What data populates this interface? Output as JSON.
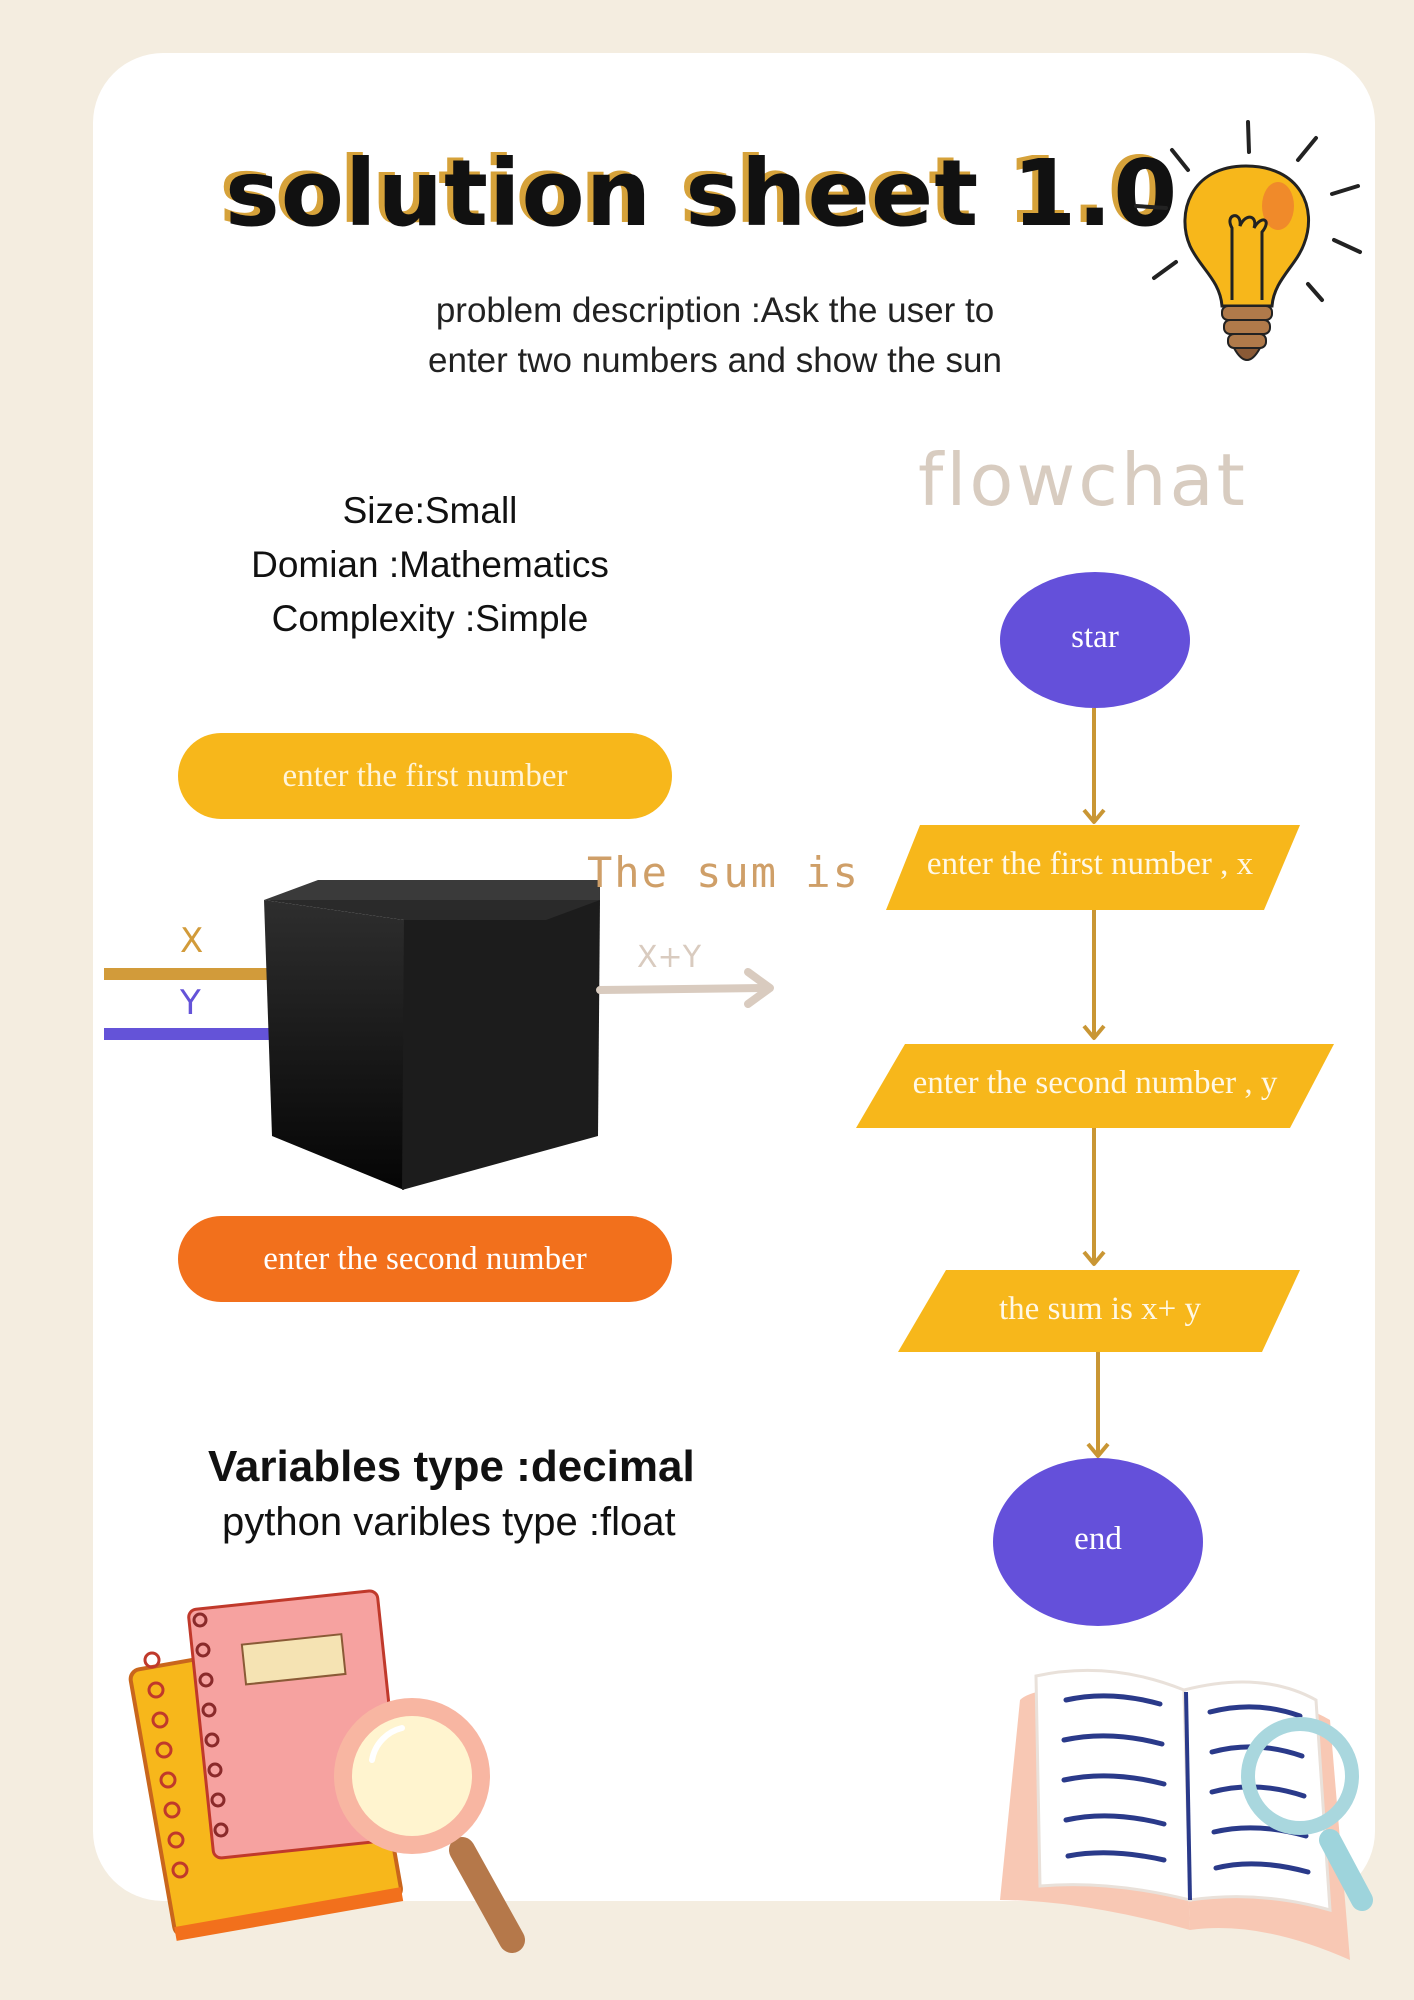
{
  "header": {
    "title": "solution sheet 1.0",
    "description_line1": "problem description :Ask the user to",
    "description_line2": "enter two numbers and show the sun"
  },
  "meta": {
    "size": "Size:Small",
    "domain": "Domian :Mathematics",
    "complexity": "Complexity :Simple"
  },
  "io_diagram": {
    "input_first": "enter the first number",
    "input_second": "enter the second number",
    "x_label": "X",
    "y_label": "Y",
    "output_label": "The sum is",
    "output_value": "X+Y"
  },
  "variables": {
    "type": "Variables type :decimal",
    "python_type": "python varibles type :float"
  },
  "flowchart": {
    "heading": "flowchat",
    "start": "star",
    "step1": "enter the first number , x",
    "step2": "enter the second number , y",
    "step3": "the sum is  x+ y",
    "end": "end"
  },
  "colors": {
    "background": "#f4ede0",
    "card": "#ffffff",
    "yellow": "#f7b71b",
    "orange": "#f2701c",
    "purple": "#6453d8",
    "gold_arrow": "#d29b3a",
    "beige_text": "#d8ccc0"
  },
  "decorations": [
    "lightbulb-icon",
    "notebooks-illustration",
    "magnifier-icon",
    "open-book-illustration"
  ]
}
